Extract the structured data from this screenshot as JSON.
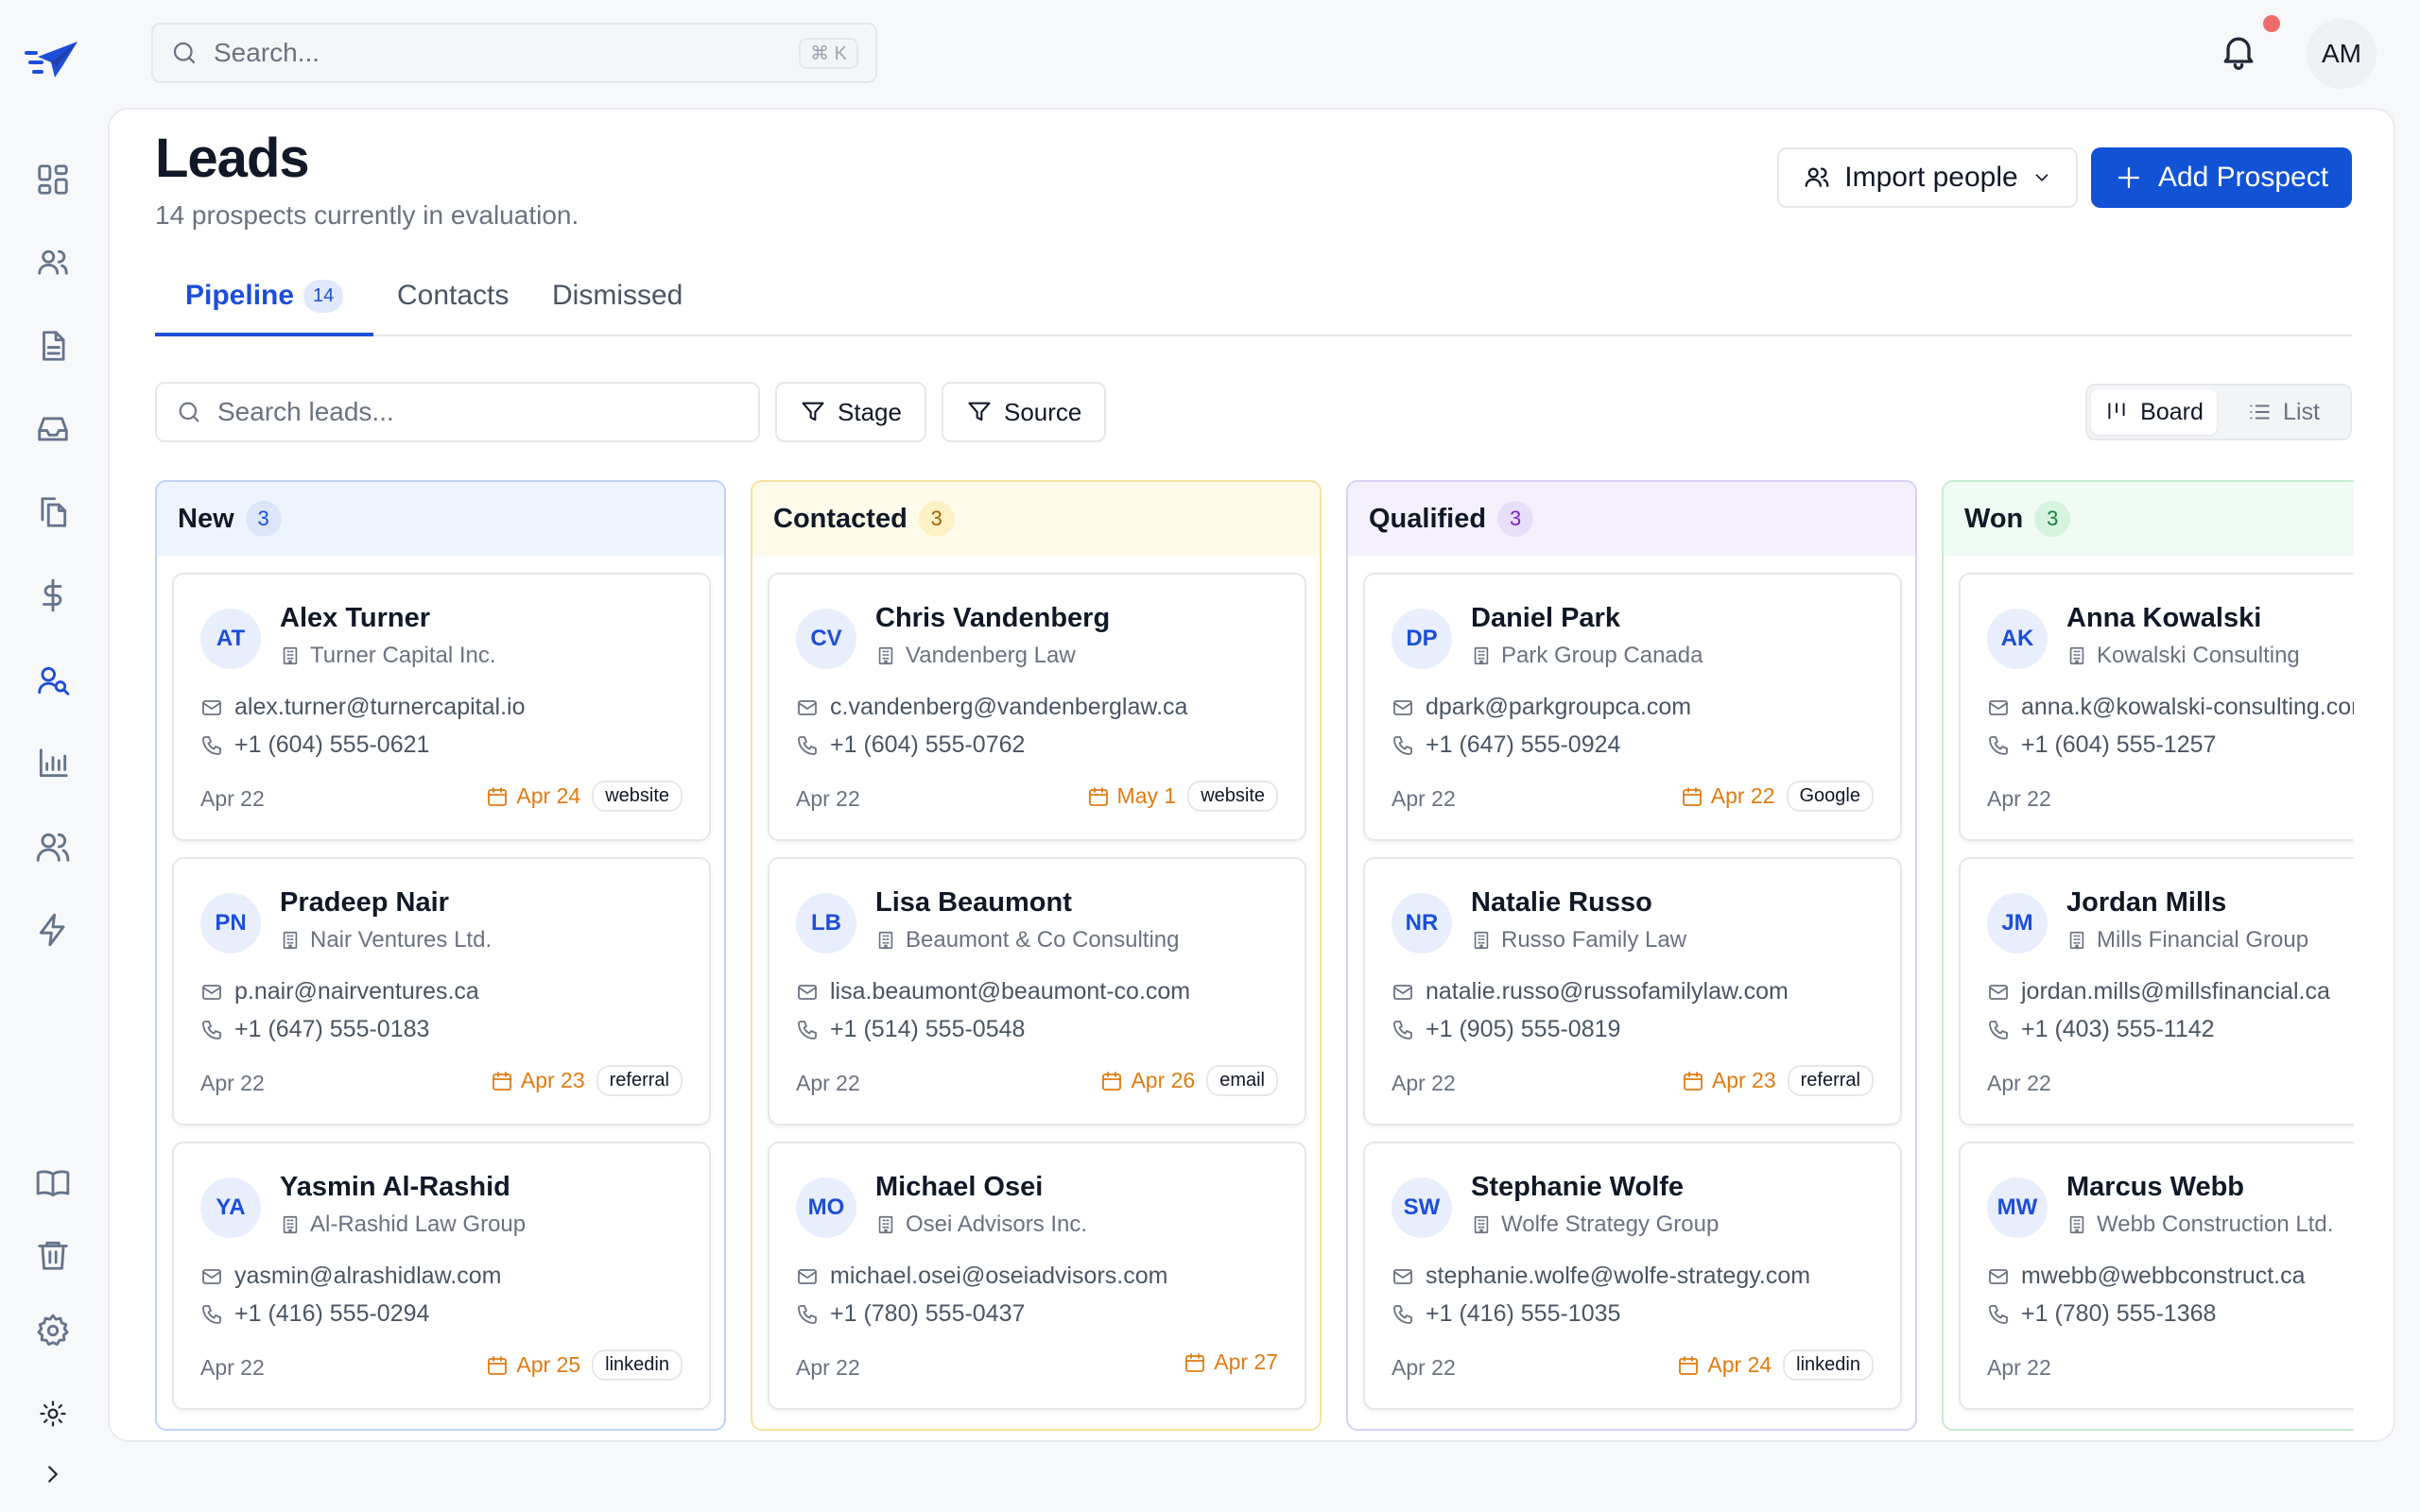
{
  "top": {
    "search_placeholder": "Search...",
    "shortcut": "⌘ K",
    "user_initials": "AM"
  },
  "rail": {
    "items": [
      {
        "icon": "dashboard-icon"
      },
      {
        "icon": "users-icon"
      },
      {
        "icon": "document-icon"
      },
      {
        "icon": "inbox-icon"
      },
      {
        "icon": "files-icon"
      },
      {
        "icon": "dollar-icon"
      },
      {
        "icon": "leads-icon",
        "active": true
      },
      {
        "icon": "chart-icon"
      },
      {
        "icon": "team-icon"
      },
      {
        "icon": "bolt-icon"
      }
    ],
    "bottom": [
      {
        "icon": "book-icon"
      },
      {
        "icon": "trash-icon"
      },
      {
        "icon": "gear-icon"
      },
      {
        "icon": "sun-icon"
      },
      {
        "icon": "chevron-right-icon"
      }
    ]
  },
  "page": {
    "title": "Leads",
    "subtitle": "14 prospects currently in evaluation.",
    "import_label": "Import people",
    "add_label": "Add Prospect"
  },
  "tabs": [
    {
      "label": "Pipeline",
      "count": "14",
      "active": true
    },
    {
      "label": "Contacts"
    },
    {
      "label": "Dismissed"
    }
  ],
  "toolbar": {
    "search_placeholder": "Search leads...",
    "stage_label": "Stage",
    "source_label": "Source",
    "board_label": "Board",
    "list_label": "List"
  },
  "columns": [
    {
      "name": "New",
      "count": "3",
      "bg": "#eef4fe",
      "border": "#bfd3f5",
      "count_bg": "#dbe6fb",
      "count_color": "#1d4ed8",
      "cards": [
        {
          "initials": "AT",
          "name": "Alex Turner",
          "company": "Turner Capital Inc.",
          "email": "alex.turner@turnercapital.io",
          "phone": "+1 (604) 555-0621",
          "date": "Apr 22",
          "due": "Apr 24",
          "tag": "website"
        },
        {
          "initials": "PN",
          "name": "Pradeep Nair",
          "company": "Nair Ventures Ltd.",
          "email": "p.nair@nairventures.ca",
          "phone": "+1 (647) 555-0183",
          "date": "Apr 22",
          "due": "Apr 23",
          "tag": "referral"
        },
        {
          "initials": "YA",
          "name": "Yasmin Al-Rashid",
          "company": "Al-Rashid Law Group",
          "email": "yasmin@alrashidlaw.com",
          "phone": "+1 (416) 555-0294",
          "date": "Apr 22",
          "due": "Apr 25",
          "tag": "linkedin"
        }
      ]
    },
    {
      "name": "Contacted",
      "count": "3",
      "bg": "#fffbea",
      "border": "#f5e3a0",
      "count_bg": "#fdf0c4",
      "count_color": "#a16207",
      "cards": [
        {
          "initials": "CV",
          "name": "Chris Vandenberg",
          "company": "Vandenberg Law",
          "email": "c.vandenberg@vandenberglaw.ca",
          "phone": "+1 (604) 555-0762",
          "date": "Apr 22",
          "due": "May 1",
          "tag": "website"
        },
        {
          "initials": "LB",
          "name": "Lisa Beaumont",
          "company": "Beaumont & Co Consulting",
          "email": "lisa.beaumont@beaumont-co.com",
          "phone": "+1 (514) 555-0548",
          "date": "Apr 22",
          "due": "Apr 26",
          "tag": "email"
        },
        {
          "initials": "MO",
          "name": "Michael Osei",
          "company": "Osei Advisors Inc.",
          "email": "michael.osei@oseiadvisors.com",
          "phone": "+1 (780) 555-0437",
          "date": "Apr 22",
          "due": "Apr 27",
          "tag": ""
        }
      ]
    },
    {
      "name": "Qualified",
      "count": "3",
      "bg": "#f4f1fd",
      "border": "#d9d0f3",
      "count_bg": "#e7dffa",
      "count_color": "#7e22ce",
      "cards": [
        {
          "initials": "DP",
          "name": "Daniel Park",
          "company": "Park Group Canada",
          "email": "dpark@parkgroupca.com",
          "phone": "+1 (647) 555-0924",
          "date": "Apr 22",
          "due": "Apr 22",
          "tag": "Google"
        },
        {
          "initials": "NR",
          "name": "Natalie Russo",
          "company": "Russo Family Law",
          "email": "natalie.russo@russofamilylaw.com",
          "phone": "+1 (905) 555-0819",
          "date": "Apr 22",
          "due": "Apr 23",
          "tag": "referral"
        },
        {
          "initials": "SW",
          "name": "Stephanie Wolfe",
          "company": "Wolfe Strategy Group",
          "email": "stephanie.wolfe@wolfe-strategy.com",
          "phone": "+1 (416) 555-1035",
          "date": "Apr 22",
          "due": "Apr 24",
          "tag": "linkedin"
        }
      ]
    },
    {
      "name": "Won",
      "count": "3",
      "bg": "#effbf3",
      "border": "#c6ecd2",
      "count_bg": "#d5f3de",
      "count_color": "#15803d",
      "cards": [
        {
          "initials": "AK",
          "name": "Anna Kowalski",
          "company": "Kowalski Consulting",
          "email": "anna.k@kowalski-consulting.com",
          "phone": "+1 (604) 555-1257",
          "date": "Apr 22",
          "due": "",
          "tag": ""
        },
        {
          "initials": "JM",
          "name": "Jordan Mills",
          "company": "Mills Financial Group",
          "email": "jordan.mills@millsfinancial.ca",
          "phone": "+1 (403) 555-1142",
          "date": "Apr 22",
          "due": "",
          "tag": ""
        },
        {
          "initials": "MW",
          "name": "Marcus Webb",
          "company": "Webb Construction Ltd.",
          "email": "mwebb@webbconstruct.ca",
          "phone": "+1 (780) 555-1368",
          "date": "Apr 22",
          "due": "",
          "tag": ""
        }
      ]
    }
  ]
}
